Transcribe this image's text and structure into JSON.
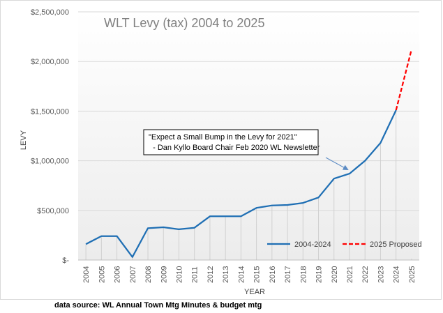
{
  "chart_data": {
    "type": "line",
    "title": "WLT Levy (tax) 2004 to 2025",
    "xlabel": "YEAR",
    "ylabel": "LEVY",
    "categories": [
      "2004",
      "2005",
      "2006",
      "2007",
      "2008",
      "2009",
      "2010",
      "2011",
      "2012",
      "2013",
      "2014",
      "2015",
      "2016",
      "2017",
      "2018",
      "2019",
      "2020",
      "2021",
      "2022",
      "2023",
      "2024",
      "2025"
    ],
    "ylim": [
      0,
      2500000
    ],
    "ytick_values": [
      0,
      500000,
      1000000,
      1500000,
      2000000,
      2500000
    ],
    "ytick_labels": [
      "$-",
      "$500,000",
      "$1,000,000",
      "$1,500,000",
      "$2,000,000",
      "$2,500,000"
    ],
    "series": [
      {
        "name": "2004-2024",
        "color": "#1f6fb4",
        "style": "solid",
        "values": [
          160000,
          240000,
          240000,
          30000,
          320000,
          330000,
          310000,
          325000,
          440000,
          440000,
          440000,
          525000,
          550000,
          555000,
          575000,
          630000,
          820000,
          870000,
          1000000,
          1180000,
          1510000,
          null
        ]
      },
      {
        "name": "2025 Proposed",
        "color": "#ff0000",
        "style": "dashed",
        "values": [
          null,
          null,
          null,
          null,
          null,
          null,
          null,
          null,
          null,
          null,
          null,
          null,
          null,
          null,
          null,
          null,
          null,
          null,
          null,
          null,
          1510000,
          2120000
        ]
      }
    ],
    "grid": true,
    "legend_position": "bottom-right",
    "annotation": {
      "lines": [
        "\"Expect a Small Bump in the Levy for 2021\"",
        "  - Dan Kyllo Board Chair Feb 2020 WL Newsletter"
      ],
      "target_category": "2021"
    }
  },
  "footer": "data source: WL Annual Town Mtg Minutes & budget mtg"
}
